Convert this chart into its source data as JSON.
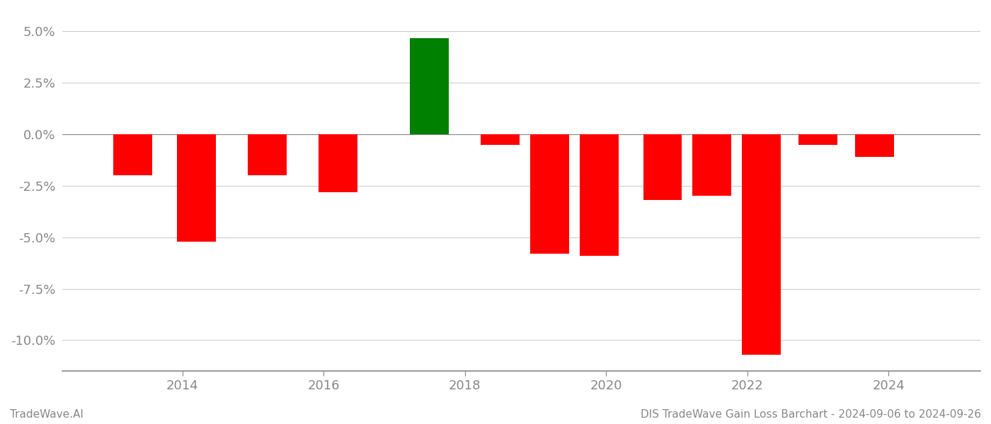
{
  "bar_data": [
    {
      "year": 2013.3,
      "value": -2.0,
      "color": "#ff0000"
    },
    {
      "year": 2014.2,
      "value": -5.2,
      "color": "#ff0000"
    },
    {
      "year": 2015.2,
      "value": -2.0,
      "color": "#ff0000"
    },
    {
      "year": 2016.2,
      "value": -2.8,
      "color": "#ff0000"
    },
    {
      "year": 2017.5,
      "value": 4.65,
      "color": "#008000"
    },
    {
      "year": 2018.5,
      "value": -0.5,
      "color": "#ff0000"
    },
    {
      "year": 2019.2,
      "value": -5.8,
      "color": "#ff0000"
    },
    {
      "year": 2019.9,
      "value": -5.9,
      "color": "#ff0000"
    },
    {
      "year": 2020.8,
      "value": -3.2,
      "color": "#ff0000"
    },
    {
      "year": 2021.5,
      "value": -3.0,
      "color": "#ff0000"
    },
    {
      "year": 2022.2,
      "value": -10.7,
      "color": "#ff0000"
    },
    {
      "year": 2023.0,
      "value": -0.5,
      "color": "#ff0000"
    },
    {
      "year": 2023.8,
      "value": -1.1,
      "color": "#ff0000"
    }
  ],
  "yticks": [
    -10.0,
    -7.5,
    -5.0,
    -2.5,
    0.0,
    2.5,
    5.0
  ],
  "ylim": [
    -11.5,
    6.0
  ],
  "xlim": [
    2012.3,
    2025.3
  ],
  "footer_left": "TradeWave.AI",
  "footer_right": "DIS TradeWave Gain Loss Barchart - 2024-09-06 to 2024-09-26",
  "background_color": "#ffffff",
  "grid_color": "#cccccc",
  "axis_color": "#888888",
  "tick_label_color": "#888888",
  "bar_width": 0.55,
  "xticks": [
    2014,
    2016,
    2018,
    2020,
    2022,
    2024
  ]
}
